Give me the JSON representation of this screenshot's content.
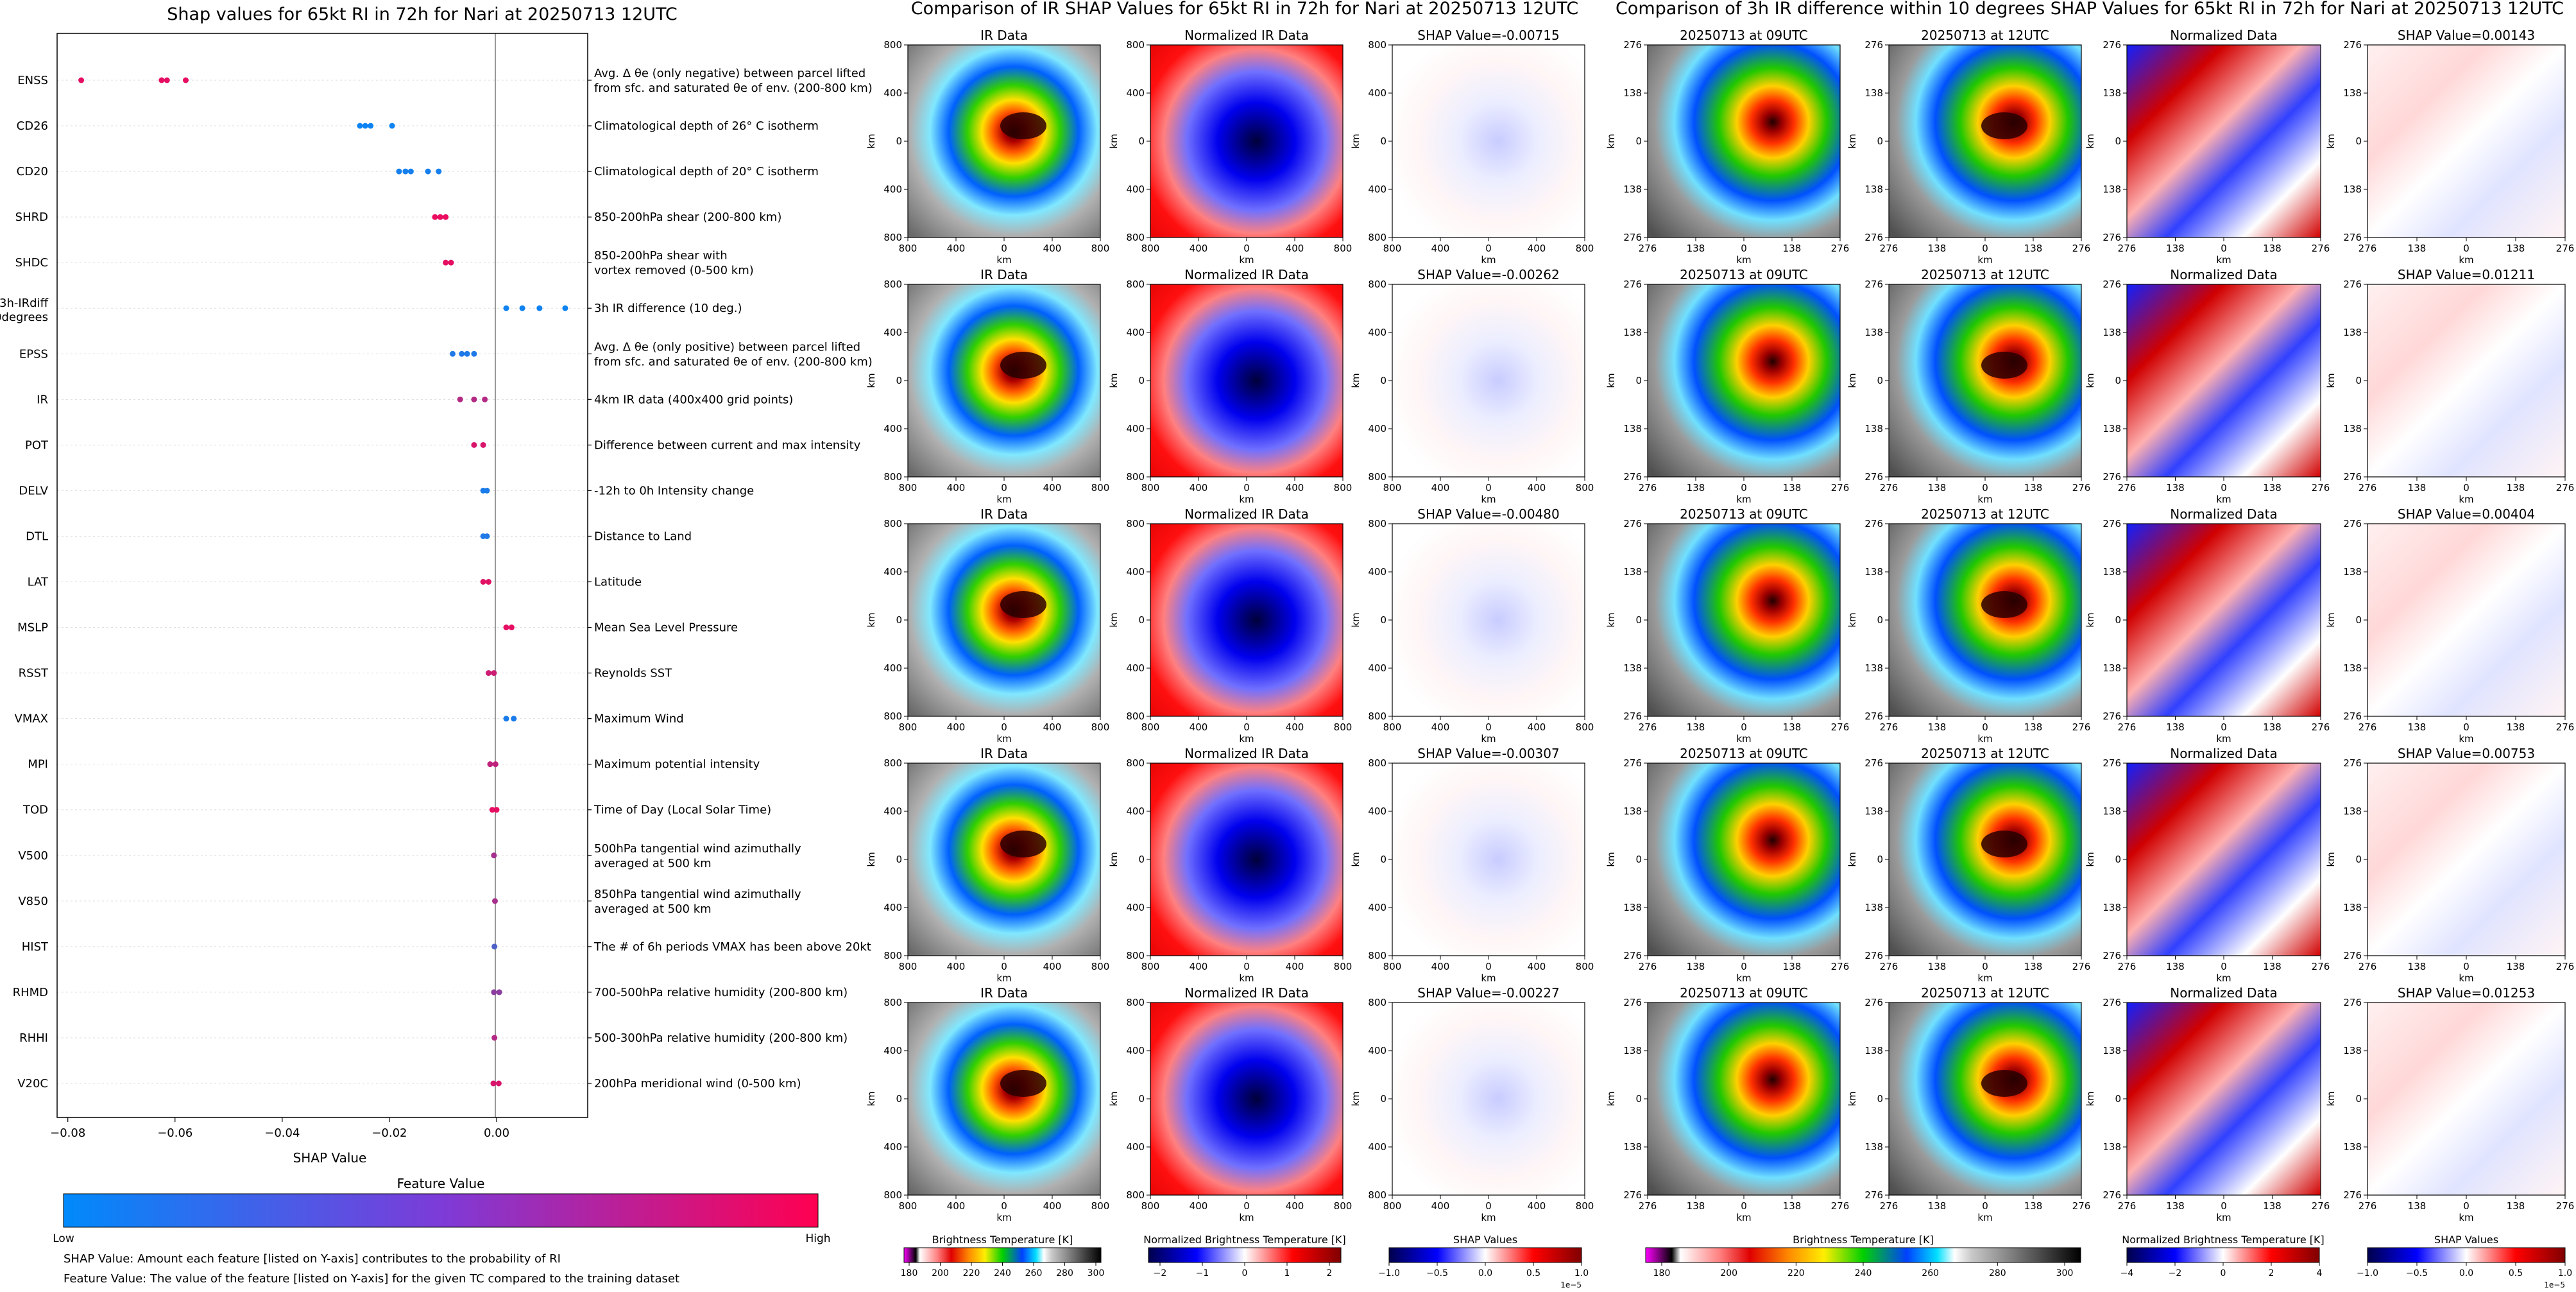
{
  "colors": {
    "shap_low": "#008afb",
    "shap_high": "#ff0051",
    "axis": "#000000",
    "zero_line": "#999999",
    "grid": "#dddddd"
  },
  "chart_data": [
    {
      "type": "scatter",
      "title": "Shap values for 65kt RI in 72h for Nari at 20250713 12UTC",
      "xlabel": "SHAP Value",
      "xlim": [
        -0.082,
        0.017
      ],
      "xticks": [
        -0.08,
        -0.06,
        -0.04,
        -0.02,
        0.0
      ],
      "xtick_labels": [
        "−0.08",
        "−0.06",
        "−0.04",
        "−0.02",
        "0.00"
      ],
      "colorbar": {
        "title": "Feature Value",
        "low_label": "Low",
        "high_label": "High"
      },
      "footnotes": [
        "SHAP Value: Amount each feature [listed on Y-axis] contributes to the probability of RI",
        "Feature Value: The value of the feature [listed on Y-axis] for the given TC compared to the training dataset"
      ],
      "features": [
        {
          "name": "ENSS",
          "desc": [
            "Avg. Δ θe (only negative) between parcel lifted",
            "from sfc. and saturated θe of env. (200-800 km)"
          ],
          "points": [
            [
              -0.0775,
              0.9
            ],
            [
              -0.0625,
              0.9
            ],
            [
              -0.0615,
              0.9
            ],
            [
              -0.058,
              0.9
            ]
          ]
        },
        {
          "name": "CD26",
          "desc": [
            "Climatological depth of 26° C isotherm"
          ],
          "points": [
            [
              -0.0255,
              0.05
            ],
            [
              -0.0245,
              0.05
            ],
            [
              -0.0235,
              0.05
            ],
            [
              -0.0195,
              0.05
            ]
          ]
        },
        {
          "name": "CD20",
          "desc": [
            "Climatological depth of 20° C isotherm"
          ],
          "points": [
            [
              -0.0182,
              0.08
            ],
            [
              -0.017,
              0.08
            ],
            [
              -0.016,
              0.08
            ],
            [
              -0.0128,
              0.08
            ],
            [
              -0.0108,
              0.08
            ]
          ]
        },
        {
          "name": "SHRD",
          "desc": [
            "850-200hPa shear (200-800 km)"
          ],
          "points": [
            [
              -0.0115,
              0.92
            ],
            [
              -0.0105,
              0.92
            ],
            [
              -0.0095,
              0.92
            ]
          ]
        },
        {
          "name": "SHDC",
          "desc": [
            "850-200hPa shear with",
            "vortex removed (0-500 km)"
          ],
          "points": [
            [
              -0.0095,
              0.9
            ],
            [
              -0.0085,
              0.9
            ]
          ]
        },
        {
          "name": "3h-IRdiff\n10degrees",
          "desc": [
            "3h IR difference (10 deg.)"
          ],
          "points": [
            [
              0.0018,
              0.06
            ],
            [
              0.0048,
              0.06
            ],
            [
              0.008,
              0.06
            ],
            [
              0.0128,
              0.06
            ]
          ]
        },
        {
          "name": "EPSS",
          "desc": [
            "Avg. Δ θe (only positive) between parcel lifted",
            "from sfc. and saturated θe of env. (200-800 km)"
          ],
          "points": [
            [
              -0.0082,
              0.12
            ],
            [
              -0.0065,
              0.12
            ],
            [
              -0.0055,
              0.12
            ],
            [
              -0.0042,
              0.12
            ]
          ]
        },
        {
          "name": "IR",
          "desc": [
            "4km IR data (400x400 grid points)"
          ],
          "points": [
            [
              -0.0068,
              0.7
            ],
            [
              -0.0042,
              0.7
            ],
            [
              -0.0022,
              0.7
            ]
          ]
        },
        {
          "name": "POT",
          "desc": [
            "Difference between current and max intensity"
          ],
          "points": [
            [
              -0.0042,
              0.85
            ],
            [
              -0.0025,
              0.85
            ]
          ]
        },
        {
          "name": "DELV",
          "desc": [
            "-12h to 0h Intensity change"
          ],
          "points": [
            [
              -0.0025,
              0.1
            ],
            [
              -0.0018,
              0.1
            ]
          ]
        },
        {
          "name": "DTL",
          "desc": [
            "Distance to Land"
          ],
          "points": [
            [
              -0.0025,
              0.12
            ],
            [
              -0.0018,
              0.12
            ]
          ]
        },
        {
          "name": "LAT",
          "desc": [
            "Latitude"
          ],
          "points": [
            [
              -0.0025,
              0.88
            ],
            [
              -0.0015,
              0.88
            ]
          ]
        },
        {
          "name": "MSLP",
          "desc": [
            "Mean Sea Level Pressure"
          ],
          "points": [
            [
              0.0018,
              0.9
            ],
            [
              0.0028,
              0.9
            ]
          ]
        },
        {
          "name": "RSST",
          "desc": [
            "Reynolds SST"
          ],
          "points": [
            [
              -0.0015,
              0.8
            ],
            [
              -0.0005,
              0.8
            ]
          ]
        },
        {
          "name": "VMAX",
          "desc": [
            "Maximum Wind"
          ],
          "points": [
            [
              0.0018,
              0.1
            ],
            [
              0.0032,
              0.1
            ]
          ]
        },
        {
          "name": "MPI",
          "desc": [
            "Maximum potential intensity"
          ],
          "points": [
            [
              -0.0012,
              0.75
            ],
            [
              -0.0002,
              0.75
            ]
          ]
        },
        {
          "name": "TOD",
          "desc": [
            "Time of Day (Local Solar Time)"
          ],
          "points": [
            [
              -0.0008,
              0.9
            ],
            [
              0.0,
              0.9
            ]
          ]
        },
        {
          "name": "V500",
          "desc": [
            "500hPa tangential wind azimuthally",
            "averaged at 500 km"
          ],
          "points": [
            [
              -0.0005,
              0.65
            ]
          ]
        },
        {
          "name": "V850",
          "desc": [
            "850hPa tangential wind azimuthally",
            "averaged at 500 km"
          ],
          "points": [
            [
              -0.0003,
              0.65
            ]
          ]
        },
        {
          "name": "HIST",
          "desc": [
            "The # of 6h periods VMAX has been above 20kt"
          ],
          "points": [
            [
              -0.0004,
              0.3
            ]
          ]
        },
        {
          "name": "RHMD",
          "desc": [
            "700-500hPa relative humidity (200-800 km)"
          ],
          "points": [
            [
              -0.0005,
              0.55
            ],
            [
              0.0005,
              0.55
            ]
          ]
        },
        {
          "name": "RHHI",
          "desc": [
            "500-300hPa relative humidity (200-800 km)"
          ],
          "points": [
            [
              -0.0004,
              0.7
            ]
          ]
        },
        {
          "name": "V20C",
          "desc": [
            "200hPa meridional wind (0-500 km)"
          ],
          "points": [
            [
              -0.0006,
              0.85
            ],
            [
              0.0004,
              0.85
            ]
          ]
        }
      ]
    },
    {
      "type": "heatmap",
      "title": "Comparison of IR SHAP Values for 65kt RI in 72h for Nari at 20250713 12UTC",
      "xlabel": "km",
      "ylabel": "km",
      "xtick_labels": [
        "800",
        "400",
        "0",
        "400",
        "800"
      ],
      "ytick_labels": [
        "800",
        "400",
        "0",
        "400",
        "800"
      ],
      "columns": [
        "IR Data",
        "Normalized IR Data"
      ],
      "shap_titles": [
        "SHAP Value=-0.00715",
        "SHAP Value=-0.00262",
        "SHAP Value=-0.00480",
        "SHAP Value=-0.00307",
        "SHAP Value=-0.00227"
      ],
      "colorbars": [
        {
          "label": "Brightness Temperature [K]",
          "ticks": [
            "180",
            "200",
            "220",
            "240",
            "260",
            "280",
            "300"
          ],
          "scale": "bt"
        },
        {
          "label": "Normalized Brightness Temperature [K]",
          "ticks": [
            "−2",
            "−1",
            "0",
            "1",
            "2"
          ],
          "scale": "rwb"
        },
        {
          "label": "SHAP Values",
          "ticks": [
            "−1.0",
            "−0.5",
            "0.0",
            "0.5",
            "1.0"
          ],
          "scale": "rwb",
          "offset": "1e−5"
        }
      ]
    },
    {
      "type": "heatmap",
      "title": "Comparison of 3h IR difference within 10 degrees SHAP Values for 65kt RI in 72h for Nari at 20250713 12UTC",
      "xlabel": "km",
      "ylabel": "km",
      "xtick_labels": [
        "276",
        "138",
        "0",
        "138",
        "276"
      ],
      "ytick_labels": [
        "276",
        "138",
        "0",
        "138",
        "276"
      ],
      "columns": [
        "20250713 at 09UTC",
        "20250713 at 12UTC",
        "Normalized Data"
      ],
      "shap_titles": [
        "SHAP Value=0.00143",
        "SHAP Value=0.01211",
        "SHAP Value=0.00404",
        "SHAP Value=0.00753",
        "SHAP Value=0.01253"
      ],
      "colorbars": [
        {
          "label": "Brightness Temperature [K]",
          "ticks": [
            "180",
            "200",
            "220",
            "240",
            "260",
            "280",
            "300"
          ],
          "scale": "bt"
        },
        {
          "label": "Normalized Brightness Temperature [K]",
          "ticks": [
            "−4",
            "−2",
            "0",
            "2",
            "4"
          ],
          "scale": "rwb"
        },
        {
          "label": "SHAP Values",
          "ticks": [
            "−1.0",
            "−0.5",
            "0.0",
            "0.5",
            "1.0"
          ],
          "scale": "rwb",
          "offset": "1e−5"
        }
      ]
    }
  ]
}
